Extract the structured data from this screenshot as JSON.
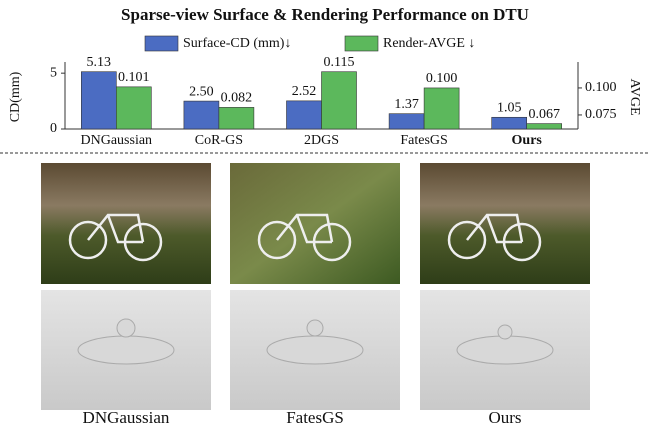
{
  "chart_data": {
    "type": "bar",
    "title": "Sparse-view Surface & Rendering Performance on DTU",
    "categories": [
      "DNGaussian",
      "CoR-GS",
      "2DGS",
      "FatesGS",
      "Ours"
    ],
    "series": [
      {
        "name": "Surface-CD (mm)↓",
        "color": "#4b6cc2",
        "values": [
          5.13,
          2.5,
          2.52,
          1.37,
          1.05
        ],
        "value_labels": [
          "5.13",
          "2.50",
          "2.52",
          "1.37",
          "1.05"
        ]
      },
      {
        "name": "Render-AVGE ↓",
        "color": "#5cb85c",
        "axis": "y2",
        "values": [
          0.101,
          0.082,
          0.115,
          0.1,
          0.067
        ],
        "value_labels": [
          "0.101",
          "0.082",
          "0.115",
          "0.100",
          "0.067"
        ]
      }
    ],
    "ylabel": "CD(mm)",
    "y2label": "AVGE",
    "ylim": [
      0,
      6
    ],
    "yticks": [
      0,
      5
    ],
    "y2lim": [
      0.062,
      0.124
    ],
    "y2ticks": [
      {
        "value": 0.1,
        "label": "0.100"
      },
      0.075
    ],
    "grid": false
  },
  "gallery": {
    "labels": [
      "DNGaussian",
      "FatesGS",
      "Ours"
    ]
  }
}
